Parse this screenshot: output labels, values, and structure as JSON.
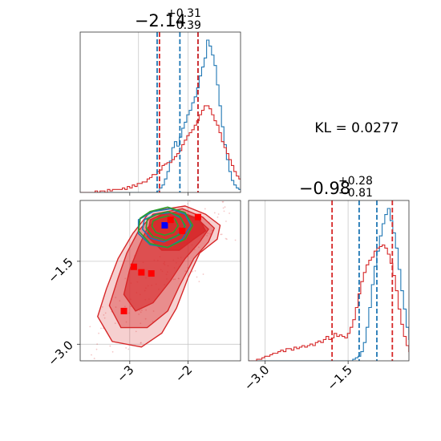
{
  "chart_data": [
    {
      "type": "histogram",
      "panel": "marginal-param-1",
      "title": {
        "median": "−2.14",
        "plus": "+0.31",
        "minus": "−0.39"
      },
      "xlim": [
        -3.85,
        -1.1
      ],
      "grid": true,
      "bins": {
        "start": -3.85,
        "width": 0.0425
      },
      "series": [
        {
          "name": "",
          "color": "#1f77b4",
          "counts": [
            0,
            0,
            0,
            0,
            0,
            0,
            0,
            0,
            0,
            0,
            0,
            0,
            0,
            0,
            0,
            0,
            0,
            0,
            0,
            0,
            0,
            0,
            0,
            0,
            0,
            0,
            0,
            0,
            0,
            0,
            0,
            1,
            3,
            5,
            9,
            14,
            21,
            30,
            34,
            31,
            37,
            43,
            47,
            52,
            55,
            60,
            64,
            70,
            78,
            84,
            90,
            102,
            98,
            92,
            85,
            72,
            58,
            44,
            32,
            22,
            14,
            8,
            5,
            3,
            2,
            1,
            1,
            0,
            0,
            0,
            0
          ]
        },
        {
          "name": "",
          "color": "#d62728",
          "counts": [
            0,
            0,
            0,
            0,
            0,
            0,
            1,
            0,
            1,
            1,
            0,
            2,
            1,
            2,
            2,
            2,
            2,
            3,
            2,
            4,
            3,
            5,
            4,
            6,
            6,
            7,
            7,
            9,
            10,
            12,
            12,
            14,
            15,
            18,
            19,
            20,
            20,
            22,
            24,
            26,
            28,
            32,
            35,
            38,
            40,
            42,
            45,
            48,
            52,
            55,
            58,
            58,
            56,
            52,
            48,
            45,
            40,
            34,
            30,
            26,
            22,
            18,
            14,
            11,
            9,
            7,
            5,
            5,
            3,
            2,
            1
          ]
        }
      ],
      "quantile_lines": [
        {
          "color": "#1f77b4",
          "values": [
            -2.53,
            -2.14,
            -1.83
          ]
        },
        {
          "color": "#d62728",
          "values": [
            -2.49,
            -1.83
          ]
        }
      ]
    },
    {
      "type": "contour",
      "panel": "joint-param-1-param-2",
      "xlim": [
        -3.85,
        -1.1
      ],
      "ylim": [
        -3.3,
        -0.4
      ],
      "xticks": [
        {
          "value": -3,
          "label": "−3"
        },
        {
          "value": -2,
          "label": "−2"
        }
      ],
      "yticks": [
        {
          "value": -1.5,
          "label": "−1.5"
        },
        {
          "value": -3.0,
          "label": "−3.0"
        }
      ],
      "grid": true,
      "markers": [
        {
          "color": "#0000ff",
          "x": -2.4,
          "y": -0.85
        },
        {
          "color": "#ff0000",
          "x": -2.3,
          "y": -0.75
        },
        {
          "color": "#ff0000",
          "x": -2.1,
          "y": -0.95
        },
        {
          "color": "#ff0000",
          "x": -1.83,
          "y": -0.7
        },
        {
          "color": "#ff0000",
          "x": -2.93,
          "y": -1.6
        },
        {
          "color": "#ff0000",
          "x": -2.8,
          "y": -1.7
        },
        {
          "color": "#ff0000",
          "x": -2.63,
          "y": -1.72
        },
        {
          "color": "#ff0000",
          "x": -3.1,
          "y": -2.4
        }
      ],
      "series": [
        {
          "name": "",
          "color": "#d62728",
          "levels": [
            [
              [
                -2.05,
                -0.5
              ],
              [
                -1.7,
                -0.65
              ],
              [
                -1.45,
                -0.85
              ],
              [
                -1.5,
                -1.1
              ],
              [
                -1.8,
                -1.35
              ],
              [
                -2.0,
                -1.8
              ],
              [
                -2.2,
                -2.35
              ],
              [
                -2.45,
                -2.8
              ],
              [
                -2.8,
                -3.05
              ],
              [
                -3.3,
                -2.95
              ],
              [
                -3.55,
                -2.5
              ],
              [
                -3.4,
                -2.0
              ],
              [
                -3.2,
                -1.45
              ],
              [
                -2.95,
                -1.0
              ],
              [
                -2.65,
                -0.6
              ]
            ],
            [
              [
                -2.1,
                -0.55
              ],
              [
                -1.75,
                -0.7
              ],
              [
                -1.55,
                -0.9
              ],
              [
                -1.65,
                -1.15
              ],
              [
                -1.9,
                -1.45
              ],
              [
                -2.15,
                -1.95
              ],
              [
                -2.35,
                -2.4
              ],
              [
                -2.7,
                -2.7
              ],
              [
                -3.15,
                -2.7
              ],
              [
                -3.35,
                -2.3
              ],
              [
                -3.2,
                -1.8
              ],
              [
                -3.05,
                -1.35
              ],
              [
                -2.85,
                -0.95
              ],
              [
                -2.6,
                -0.65
              ]
            ],
            [
              [
                -2.15,
                -0.6
              ],
              [
                -1.85,
                -0.72
              ],
              [
                -1.65,
                -0.92
              ],
              [
                -1.8,
                -1.15
              ],
              [
                -2.05,
                -1.45
              ],
              [
                -2.3,
                -1.85
              ],
              [
                -2.6,
                -2.25
              ],
              [
                -2.9,
                -2.4
              ],
              [
                -3.1,
                -2.1
              ],
              [
                -3.0,
                -1.65
              ],
              [
                -2.85,
                -1.25
              ],
              [
                -2.7,
                -0.9
              ],
              [
                -2.45,
                -0.65
              ]
            ],
            [
              [
                -2.1,
                -0.65
              ],
              [
                -1.8,
                -0.75
              ],
              [
                -1.7,
                -0.95
              ],
              [
                -1.9,
                -1.1
              ],
              [
                -2.15,
                -1.3
              ],
              [
                -2.45,
                -1.3
              ],
              [
                -2.7,
                -1.05
              ],
              [
                -2.65,
                -0.75
              ],
              [
                -2.4,
                -0.62
              ]
            ]
          ]
        },
        {
          "name": "",
          "color": "#1f77b4",
          "levels": [
            [
              [
                -2.6,
                -0.6
              ],
              [
                -2.3,
                -0.55
              ],
              [
                -2.05,
                -0.65
              ],
              [
                -1.95,
                -0.85
              ],
              [
                -2.1,
                -1.1
              ],
              [
                -2.35,
                -1.25
              ],
              [
                -2.65,
                -1.2
              ],
              [
                -2.85,
                -1.0
              ],
              [
                -2.85,
                -0.75
              ]
            ],
            [
              [
                -2.55,
                -0.65
              ],
              [
                -2.3,
                -0.62
              ],
              [
                -2.12,
                -0.72
              ],
              [
                -2.05,
                -0.88
              ],
              [
                -2.2,
                -1.05
              ],
              [
                -2.42,
                -1.15
              ],
              [
                -2.65,
                -1.08
              ],
              [
                -2.78,
                -0.92
              ],
              [
                -2.75,
                -0.75
              ]
            ]
          ]
        },
        {
          "name": "",
          "color": "#2ca02c",
          "levels": [
            [
              [
                -2.65,
                -0.6
              ],
              [
                -2.35,
                -0.52
              ],
              [
                -2.05,
                -0.62
              ],
              [
                -1.92,
                -0.85
              ],
              [
                -2.05,
                -1.1
              ],
              [
                -2.35,
                -1.25
              ],
              [
                -2.65,
                -1.18
              ],
              [
                -2.85,
                -0.95
              ],
              [
                -2.82,
                -0.72
              ]
            ],
            [
              [
                -2.55,
                -0.66
              ],
              [
                -2.35,
                -0.6
              ],
              [
                -2.15,
                -0.68
              ],
              [
                -2.05,
                -0.85
              ],
              [
                -2.15,
                -1.02
              ],
              [
                -2.38,
                -1.12
              ],
              [
                -2.6,
                -1.05
              ],
              [
                -2.72,
                -0.9
              ],
              [
                -2.7,
                -0.74
              ]
            ],
            [
              [
                -2.5,
                -0.72
              ],
              [
                -2.35,
                -0.68
              ],
              [
                -2.22,
                -0.74
              ],
              [
                -2.17,
                -0.86
              ],
              [
                -2.25,
                -0.98
              ],
              [
                -2.4,
                -1.03
              ],
              [
                -2.55,
                -0.98
              ],
              [
                -2.62,
                -0.87
              ],
              [
                -2.6,
                -0.77
              ]
            ]
          ]
        }
      ]
    },
    {
      "type": "histogram",
      "panel": "marginal-param-2",
      "title": {
        "median": "−0.98",
        "plus": "+0.28",
        "minus": "−0.81"
      },
      "xlim": [
        -3.3,
        -0.4
      ],
      "xticks": [
        {
          "value": -3.0,
          "label": "−3.0"
        },
        {
          "value": -1.5,
          "label": "−1.5"
        }
      ],
      "grid": true,
      "bins": {
        "start": -3.3,
        "width": 0.0483
      },
      "series": [
        {
          "name": "",
          "color": "#1f77b4",
          "counts": [
            0,
            0,
            0,
            0,
            0,
            0,
            0,
            0,
            0,
            0,
            0,
            0,
            0,
            0,
            0,
            0,
            0,
            0,
            0,
            0,
            0,
            0,
            0,
            0,
            0,
            0,
            0,
            0,
            0,
            0,
            0,
            0,
            0,
            0,
            0,
            0,
            0,
            0,
            0,
            1,
            2,
            3,
            6,
            12,
            22,
            35,
            50,
            62,
            72,
            82,
            90,
            96,
            100,
            92,
            84,
            74,
            60,
            46,
            34,
            22,
            14,
            8,
            4,
            0
          ]
        },
        {
          "name": "",
          "color": "#d62728",
          "counts": [
            0,
            0,
            0,
            1,
            1,
            2,
            3,
            3,
            4,
            5,
            5,
            6,
            7,
            6,
            8,
            8,
            7,
            9,
            8,
            9,
            10,
            9,
            10,
            11,
            10,
            12,
            13,
            12,
            14,
            16,
            14,
            15,
            18,
            16,
            17,
            16,
            15,
            18,
            22,
            27,
            35,
            44,
            52,
            58,
            63,
            66,
            68,
            72,
            74,
            75,
            76,
            74,
            70,
            64,
            56,
            46,
            34,
            24,
            16,
            10,
            6,
            4,
            2,
            0
          ]
        }
      ],
      "quantile_lines": [
        {
          "color": "#d62728",
          "values": [
            -1.79,
            -0.7
          ]
        },
        {
          "color": "#1f77b4",
          "values": [
            -1.3,
            -0.98
          ]
        }
      ]
    }
  ],
  "annotation": {
    "text": "KL = 0.0277"
  }
}
